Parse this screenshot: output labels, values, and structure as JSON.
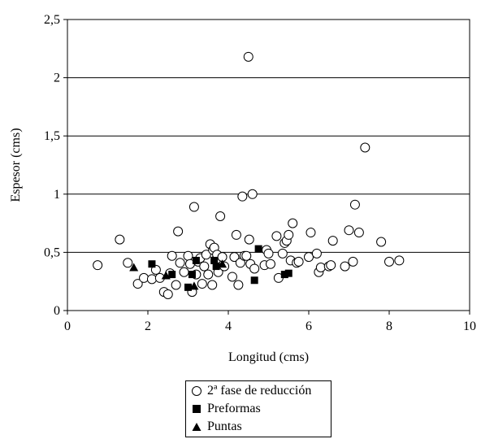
{
  "chart_data": {
    "type": "scatter",
    "title": "",
    "xlabel": "Longitud (cms)",
    "ylabel": "Espesor (cms)",
    "xlim": [
      0,
      10
    ],
    "ylim": [
      0,
      2.5
    ],
    "xticks": [
      "0",
      "2",
      "4",
      "6",
      "8",
      "10"
    ],
    "yticks": [
      "0",
      "0,5",
      "1",
      "1,5",
      "2",
      "2,5"
    ],
    "grid": "horizontal",
    "legend_position": "bottom",
    "series": [
      {
        "name": "2ª fase de reducción",
        "marker": "open-circle",
        "color": "#000000",
        "points": [
          [
            0.75,
            0.39
          ],
          [
            1.3,
            0.61
          ],
          [
            1.5,
            0.41
          ],
          [
            1.75,
            0.23
          ],
          [
            1.9,
            0.28
          ],
          [
            2.1,
            0.27
          ],
          [
            2.2,
            0.35
          ],
          [
            2.3,
            0.28
          ],
          [
            2.4,
            0.16
          ],
          [
            2.5,
            0.14
          ],
          [
            2.55,
            0.32
          ],
          [
            2.6,
            0.47
          ],
          [
            2.7,
            0.22
          ],
          [
            2.75,
            0.68
          ],
          [
            2.8,
            0.41
          ],
          [
            2.9,
            0.33
          ],
          [
            3.0,
            0.47
          ],
          [
            3.05,
            0.4
          ],
          [
            3.1,
            0.16
          ],
          [
            3.15,
            0.89
          ],
          [
            3.2,
            0.31
          ],
          [
            3.25,
            0.42
          ],
          [
            3.3,
            0.45
          ],
          [
            3.35,
            0.23
          ],
          [
            3.4,
            0.38
          ],
          [
            3.45,
            0.48
          ],
          [
            3.5,
            0.31
          ],
          [
            3.55,
            0.57
          ],
          [
            3.6,
            0.22
          ],
          [
            3.62,
            0.52
          ],
          [
            3.65,
            0.54
          ],
          [
            3.7,
            0.44
          ],
          [
            3.72,
            0.48
          ],
          [
            3.75,
            0.33
          ],
          [
            3.8,
            0.81
          ],
          [
            3.85,
            0.46
          ],
          [
            3.9,
            0.38
          ],
          [
            4.1,
            0.29
          ],
          [
            4.15,
            0.46
          ],
          [
            4.2,
            0.65
          ],
          [
            4.25,
            0.22
          ],
          [
            4.3,
            0.41
          ],
          [
            4.35,
            0.98
          ],
          [
            4.4,
            0.47
          ],
          [
            4.45,
            0.47
          ],
          [
            4.5,
            2.18
          ],
          [
            4.52,
            0.61
          ],
          [
            4.55,
            0.4
          ],
          [
            4.6,
            1.0
          ],
          [
            4.65,
            0.36
          ],
          [
            4.9,
            0.39
          ],
          [
            4.95,
            0.52
          ],
          [
            5.0,
            0.49
          ],
          [
            5.05,
            0.4
          ],
          [
            5.2,
            0.64
          ],
          [
            5.25,
            0.28
          ],
          [
            5.35,
            0.49
          ],
          [
            5.4,
            0.58
          ],
          [
            5.45,
            0.6
          ],
          [
            5.5,
            0.65
          ],
          [
            5.6,
            0.75
          ],
          [
            5.55,
            0.43
          ],
          [
            5.7,
            0.41
          ],
          [
            5.75,
            0.42
          ],
          [
            6.0,
            0.46
          ],
          [
            6.05,
            0.67
          ],
          [
            6.2,
            0.49
          ],
          [
            6.25,
            0.33
          ],
          [
            6.3,
            0.37
          ],
          [
            6.5,
            0.38
          ],
          [
            6.55,
            0.39
          ],
          [
            6.6,
            0.6
          ],
          [
            6.9,
            0.38
          ],
          [
            7.0,
            0.69
          ],
          [
            7.1,
            0.42
          ],
          [
            7.15,
            0.91
          ],
          [
            7.25,
            0.67
          ],
          [
            7.4,
            1.4
          ],
          [
            7.8,
            0.59
          ],
          [
            8.0,
            0.42
          ],
          [
            8.25,
            0.43
          ]
        ]
      },
      {
        "name": "Preformas",
        "marker": "filled-square",
        "color": "#000000",
        "points": [
          [
            2.1,
            0.4
          ],
          [
            2.6,
            0.31
          ],
          [
            3.0,
            0.2
          ],
          [
            3.1,
            0.31
          ],
          [
            3.2,
            0.43
          ],
          [
            3.65,
            0.43
          ],
          [
            3.7,
            0.38
          ],
          [
            4.65,
            0.26
          ],
          [
            4.75,
            0.53
          ],
          [
            5.4,
            0.31
          ],
          [
            5.5,
            0.32
          ]
        ]
      },
      {
        "name": "Puntas",
        "marker": "filled-triangle",
        "color": "#000000",
        "points": [
          [
            1.65,
            0.37
          ],
          [
            2.45,
            0.3
          ],
          [
            3.15,
            0.21
          ],
          [
            3.85,
            0.4
          ]
        ]
      }
    ]
  }
}
